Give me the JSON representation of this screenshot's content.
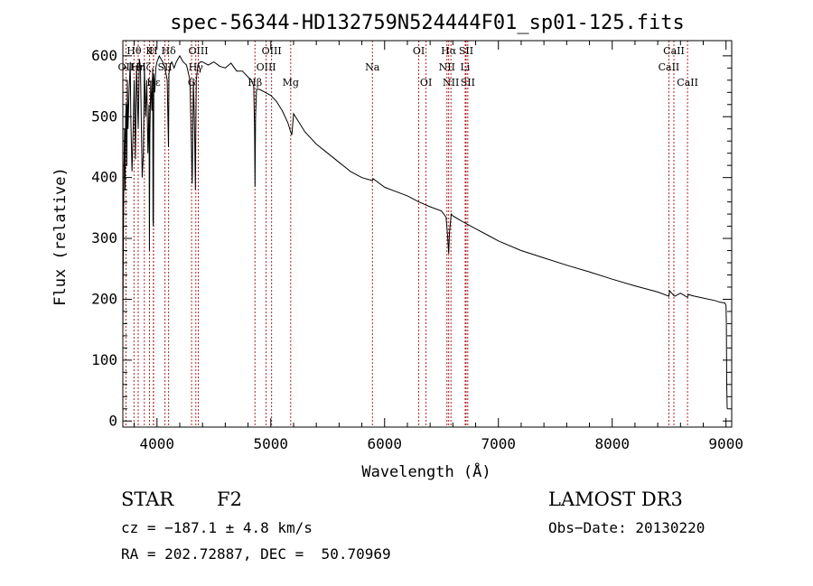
{
  "chart_data": {
    "type": "line",
    "title": "spec-56344-HD132759N524444F01_sp01-125.fits",
    "xlabel": "Wavelength (Å)",
    "ylabel": "Flux (relative)",
    "xlim": [
      3700,
      9050
    ],
    "ylim": [
      -10,
      625
    ],
    "xticks": [
      4000,
      5000,
      6000,
      7000,
      8000,
      9000
    ],
    "yticks": [
      0,
      100,
      200,
      300,
      400,
      500,
      600
    ],
    "series": [
      {
        "name": "flux",
        "x": [
          3700,
          3705,
          3710,
          3715,
          3720,
          3725,
          3730,
          3735,
          3740,
          3745,
          3755,
          3765,
          3770,
          3780,
          3790,
          3800,
          3810,
          3820,
          3835,
          3845,
          3855,
          3870,
          3880,
          3890,
          3900,
          3910,
          3920,
          3930,
          3933,
          3937,
          3945,
          3955,
          3962,
          3965,
          3968,
          3972,
          3980,
          3990,
          4000,
          4020,
          4050,
          4070,
          4090,
          4101,
          4105,
          4115,
          4130,
          4150,
          4170,
          4200,
          4230,
          4260,
          4290,
          4310,
          4320,
          4330,
          4337,
          4340,
          4345,
          4360,
          4380,
          4400,
          4450,
          4500,
          4550,
          4600,
          4650,
          4700,
          4750,
          4800,
          4830,
          4850,
          4857,
          4861,
          4866,
          4875,
          4900,
          4950,
          5000,
          5050,
          5100,
          5150,
          5175,
          5185,
          5200,
          5300,
          5400,
          5500,
          5600,
          5700,
          5800,
          5893,
          5900,
          6000,
          6100,
          6200,
          6300,
          6400,
          6500,
          6540,
          6555,
          6563,
          6570,
          6585,
          6600,
          6700,
          6800,
          6900,
          7000,
          7200,
          7400,
          7600,
          7800,
          8000,
          8200,
          8400,
          8498,
          8505,
          8542,
          8550,
          8600,
          8662,
          8670,
          8700,
          8800,
          8900,
          8950,
          8990,
          9000,
          9003,
          9006,
          9010
        ],
        "values": [
          150,
          300,
          420,
          480,
          380,
          500,
          520,
          420,
          560,
          480,
          540,
          590,
          500,
          410,
          470,
          560,
          430,
          585,
          480,
          595,
          580,
          400,
          440,
          580,
          500,
          560,
          440,
          520,
          280,
          470,
          560,
          510,
          580,
          330,
          320,
          570,
          540,
          580,
          590,
          600,
          590,
          580,
          560,
          450,
          570,
          585,
          590,
          580,
          590,
          600,
          590,
          585,
          560,
          390,
          560,
          480,
          380,
          450,
          560,
          585,
          590,
          590,
          585,
          590,
          583,
          580,
          588,
          575,
          575,
          565,
          560,
          550,
          480,
          385,
          500,
          545,
          545,
          540,
          535,
          525,
          510,
          490,
          475,
          470,
          505,
          475,
          455,
          440,
          425,
          410,
          400,
          395,
          398,
          384,
          377,
          370,
          360,
          352,
          345,
          335,
          300,
          275,
          310,
          340,
          337,
          326,
          316,
          306,
          296,
          280,
          268,
          256,
          245,
          233,
          222,
          212,
          205,
          214,
          206,
          205,
          210,
          203,
          208,
          206,
          202,
          198,
          195,
          194,
          190,
          160,
          60,
          20
        ]
      }
    ],
    "spectral_lines": [
      {
        "label": "Hθ",
        "wavelength": 3798,
        "row": 0
      },
      {
        "label": "OII",
        "wavelength": 3727,
        "row": 1
      },
      {
        "label": "Hη",
        "wavelength": 3835,
        "row": 1
      },
      {
        "label": "K",
        "wavelength": 3934,
        "row": 0
      },
      {
        "label": "Hζ",
        "wavelength": 3889,
        "row": 1
      },
      {
        "label": "Hε",
        "wavelength": 3970,
        "row": 2
      },
      {
        "label": "H",
        "wavelength": 3968,
        "row": 0
      },
      {
        "label": "SII",
        "wavelength": 4070,
        "row": 1
      },
      {
        "label": "Hδ",
        "wavelength": 4102,
        "row": 0
      },
      {
        "label": "G",
        "wavelength": 4304,
        "row": 2
      },
      {
        "label": "Hγ",
        "wavelength": 4341,
        "row": 1
      },
      {
        "label": "OIII",
        "wavelength": 4363,
        "row": 0
      },
      {
        "label": "Hβ",
        "wavelength": 4861,
        "row": 2
      },
      {
        "label": "OIII",
        "wavelength": 4959,
        "row": 1
      },
      {
        "label": "OIII",
        "wavelength": 5007,
        "row": 0
      },
      {
        "label": "Mg",
        "wavelength": 5175,
        "row": 2
      },
      {
        "label": "Na",
        "wavelength": 5893,
        "row": 1
      },
      {
        "label": "OI",
        "wavelength": 6300,
        "row": 0
      },
      {
        "label": "OI",
        "wavelength": 6364,
        "row": 2
      },
      {
        "label": "NII",
        "wavelength": 6548,
        "row": 1
      },
      {
        "label": "Hα",
        "wavelength": 6563,
        "row": 0
      },
      {
        "label": "NII",
        "wavelength": 6583,
        "row": 2
      },
      {
        "label": "SII",
        "wavelength": 6716,
        "row": 0
      },
      {
        "label": "Li",
        "wavelength": 6708,
        "row": 1
      },
      {
        "label": "SII",
        "wavelength": 6731,
        "row": 2
      },
      {
        "label": "CaII",
        "wavelength": 8498,
        "row": 1
      },
      {
        "label": "CaII",
        "wavelength": 8542,
        "row": 0
      },
      {
        "label": "CaII",
        "wavelength": 8662,
        "row": 2
      }
    ]
  },
  "info": {
    "object_class": "STAR",
    "subclass": "F2",
    "survey": "LAMOST DR3",
    "cz": "cz = −187.1 ± 4.8 km/s",
    "obs_date": "Obs−Date: 20130220",
    "coords": "RA = 202.72887, DEC =  50.70969"
  },
  "colors": {
    "line_marker": "#b22222",
    "spectrum": "#000000"
  }
}
